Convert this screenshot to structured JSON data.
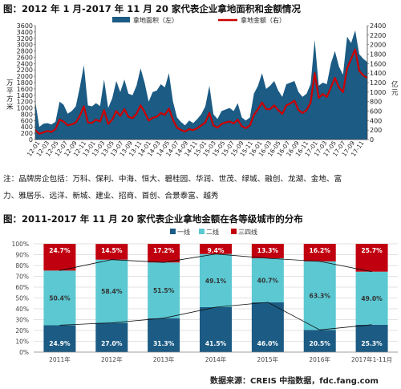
{
  "chart_data": [
    {
      "type": "area+line",
      "title": "图：2012 年 1 月-2017 年 11 月 20 家代表企业拿地面积和金额情况",
      "ylabel_left": "万平方米",
      "ylabel_right": "亿元",
      "ylim_left": [
        0,
        3600
      ],
      "ylim_right": [
        0,
        2400
      ],
      "yticks_left": [
        "0",
        "200",
        "400",
        "600",
        "800",
        "1000",
        "1200",
        "1400",
        "1600",
        "1800",
        "2000",
        "2200",
        "2400",
        "2600",
        "2800",
        "3000",
        "3200",
        "3400",
        "3600"
      ],
      "yticks_right": [
        "0",
        "200",
        "400",
        "600",
        "800",
        "1000",
        "1200",
        "1400",
        "1600",
        "1800",
        "2000",
        "2200",
        "2400"
      ],
      "x_tick_labels": [
        "12-01",
        "12-03",
        "12-05",
        "12-07",
        "12-09",
        "12-11",
        "13-01",
        "13-03",
        "13-05",
        "13-07",
        "13-09",
        "13-11",
        "14-01",
        "14-03",
        "14-05",
        "14-07",
        "14-09",
        "14-11",
        "15-01",
        "15-03",
        "15-05",
        "15-07",
        "15-09",
        "15-11",
        "16-01",
        "16-03",
        "16-05",
        "16-07",
        "16-09",
        "16-11",
        "17-01",
        "17-03",
        "17-05",
        "17-07",
        "17-09",
        "17-11"
      ],
      "series": [
        {
          "name": "拿地面积（左）",
          "color": "#1b5b84",
          "values": [
            1200,
            400,
            500,
            520,
            480,
            560,
            1200,
            1100,
            820,
            900,
            1050,
            1650,
            2350,
            1080,
            1050,
            1150,
            1060,
            1900,
            1000,
            1300,
            1850,
            1500,
            1900,
            1450,
            1400,
            1700,
            2250,
            1800,
            1200,
            1500,
            1550,
            1750,
            1650,
            2100,
            1200,
            700,
            550,
            450,
            600,
            520,
            650,
            800,
            1050,
            1700,
            800,
            650,
            900,
            950,
            1000,
            900,
            1150,
            700,
            600,
            700,
            1450,
            1700,
            2100,
            1600,
            1700,
            1850,
            1550,
            1350,
            1750,
            1800,
            1850,
            1500,
            1350,
            1450,
            1750,
            3150,
            1700,
            1800,
            1750,
            2400,
            2800,
            2300,
            2050,
            3250,
            3050,
            3450,
            2700,
            2550,
            2450
          ]
        },
        {
          "name": "拿地金额（右）",
          "color": "#cc0000",
          "values": [
            200,
            120,
            150,
            180,
            160,
            220,
            420,
            380,
            300,
            320,
            360,
            500,
            700,
            360,
            350,
            420,
            380,
            620,
            330,
            420,
            600,
            500,
            640,
            480,
            450,
            540,
            720,
            580,
            400,
            460,
            480,
            560,
            520,
            650,
            420,
            250,
            200,
            170,
            220,
            200,
            240,
            300,
            360,
            560,
            300,
            250,
            330,
            360,
            380,
            340,
            420,
            280,
            240,
            300,
            520,
            640,
            780,
            640,
            640,
            720,
            620,
            540,
            720,
            760,
            820,
            620,
            560,
            620,
            780,
            1400,
            880,
            960,
            900,
            1100,
            1300,
            1100,
            1000,
            1500,
            1700,
            1900,
            1450,
            1350,
            1300
          ]
        }
      ]
    },
    {
      "type": "stacked_bar+line",
      "title": "图：2011-2017 年 11 月 20 家代表企业拿地金额在各等级城市的分布",
      "categories": [
        "2011年",
        "2012年",
        "2013年",
        "2014年",
        "2015年",
        "2016年",
        "2017年1-11月"
      ],
      "ylim": [
        0,
        100
      ],
      "yticks": [
        "0%",
        "10%",
        "20%",
        "30%",
        "40%",
        "50%",
        "60%",
        "70%",
        "80%",
        "90%",
        "100%"
      ],
      "legend_position": "top",
      "series": [
        {
          "name": "一线",
          "color": "#1b5b84",
          "values": [
            24.9,
            27.0,
            31.3,
            41.5,
            46.0,
            20.5,
            25.3
          ],
          "labels": [
            "24.9%",
            "27.0%",
            "31.3%",
            "41.5%",
            "46.0%",
            "20.5%",
            "25.3%"
          ]
        },
        {
          "name": "二线",
          "color": "#5bc8d2",
          "values": [
            50.4,
            58.4,
            51.5,
            49.1,
            40.7,
            63.3,
            49.0
          ],
          "labels": [
            "50.4%",
            "58.4%",
            "51.5%",
            "49.1%",
            "40.7%",
            "63.3%",
            "49.0%"
          ]
        },
        {
          "name": "三四线",
          "color": "#c0000f",
          "values": [
            24.7,
            14.5,
            17.2,
            9.4,
            13.3,
            16.2,
            25.7
          ],
          "labels": [
            "24.7%",
            "14.5%",
            "17.2%",
            "9.4%",
            "13.3%",
            "16.2%",
            "25.7%"
          ]
        }
      ]
    }
  ],
  "notes": {
    "line1": "注：品牌房企包括：万科、保利、中海、恒大、碧桂园、华润、世茂、绿城、融创、龙湖、金地、富",
    "line2": "力、雅居乐、远洋、新城、建业、招商、首创、合景泰富、越秀"
  },
  "source": "数据来源：CREIS 中指数据，fdc.fang.com"
}
